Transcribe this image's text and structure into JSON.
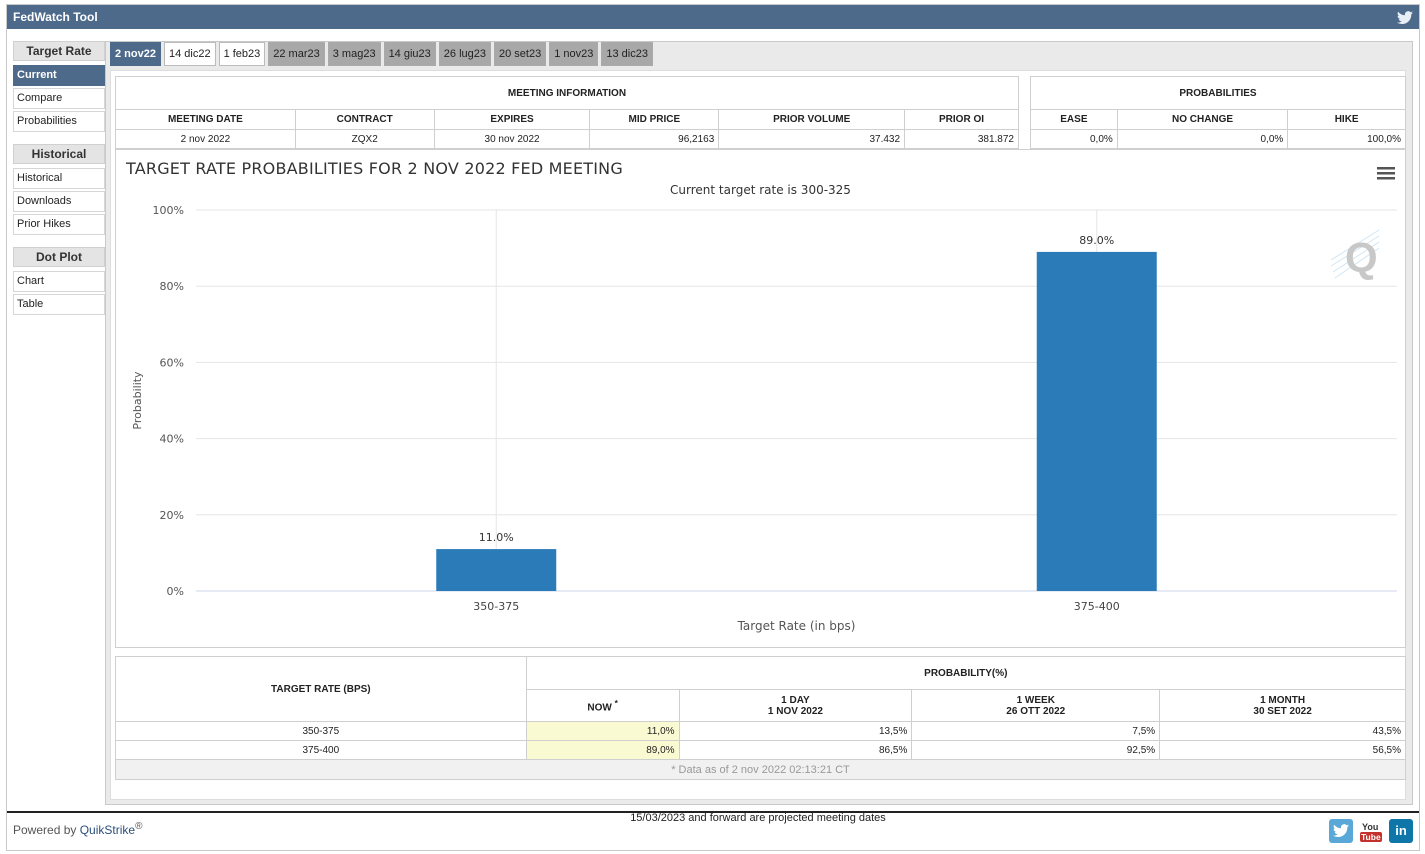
{
  "app": {
    "title": "FedWatch Tool"
  },
  "sidebar": {
    "sections": [
      {
        "header": "Target Rate",
        "items": [
          "Current",
          "Compare",
          "Probabilities"
        ]
      },
      {
        "header": "Historical",
        "items": [
          "Historical",
          "Downloads",
          "Prior Hikes"
        ]
      },
      {
        "header": "Dot Plot",
        "items": [
          "Chart",
          "Table"
        ]
      }
    ],
    "active": "Current"
  },
  "tabs": [
    "2 nov22",
    "14 dic22",
    "1 feb23",
    "22 mar23",
    "3 mag23",
    "14 giu23",
    "26 lug23",
    "20 set23",
    "1 nov23",
    "13 dic23"
  ],
  "meeting_info": {
    "header": "MEETING INFORMATION",
    "columns": [
      "MEETING DATE",
      "CONTRACT",
      "EXPIRES",
      "MID PRICE",
      "PRIOR VOLUME",
      "PRIOR OI"
    ],
    "row": [
      "2 nov 2022",
      "ZQX2",
      "30 nov 2022",
      "96,2163",
      "37.432",
      "381.872"
    ]
  },
  "probabilities": {
    "header": "PROBABILITIES",
    "columns": [
      "EASE",
      "NO CHANGE",
      "HIKE"
    ],
    "row": [
      "0,0%",
      "0,0%",
      "100,0%"
    ]
  },
  "chart_data": {
    "type": "bar",
    "title": "TARGET RATE PROBABILITIES FOR 2 NOV 2022 FED MEETING",
    "subtitle": "Current target rate is 300-325",
    "categories": [
      "350-375",
      "375-400"
    ],
    "values": [
      11.0,
      89.0
    ],
    "data_labels": [
      "11.0%",
      "89.0%"
    ],
    "xlabel": "Target Rate (in bps)",
    "ylabel": "Probability",
    "ylim": [
      0,
      100
    ],
    "yticks": [
      "0%",
      "20%",
      "40%",
      "60%",
      "80%",
      "100%"
    ],
    "color": "#2b7bb9",
    "grid": true
  },
  "bottom_table": {
    "target_header": "TARGET RATE (BPS)",
    "prob_header": "PROBABILITY(%)",
    "now_label": "NOW",
    "now_mark": "*",
    "periods": [
      {
        "label": "1 DAY",
        "date": "1 NOV 2022"
      },
      {
        "label": "1 WEEK",
        "date": "26 OTT 2022"
      },
      {
        "label": "1 MONTH",
        "date": "30 SET 2022"
      }
    ],
    "rows": [
      {
        "rate": "350-375",
        "now": "11,0%",
        "day": "13,5%",
        "week": "7,5%",
        "month": "43,5%"
      },
      {
        "rate": "375-400",
        "now": "89,0%",
        "day": "86,5%",
        "week": "92,5%",
        "month": "56,5%"
      }
    ],
    "footnote": "* Data as of 2 nov 2022 02:13:21 CT"
  },
  "projected_note": "15/03/2023 and forward are projected meeting dates",
  "footer": {
    "powered_by": "Powered by",
    "brand": "QuikStrike",
    "reg": "®"
  },
  "social": [
    "twitter-icon",
    "youtube-icon",
    "linkedin-icon"
  ],
  "colors": {
    "header_bar": "#4e6a8a",
    "bar": "#2b7bb9",
    "now_highlight": "#fafad2"
  }
}
